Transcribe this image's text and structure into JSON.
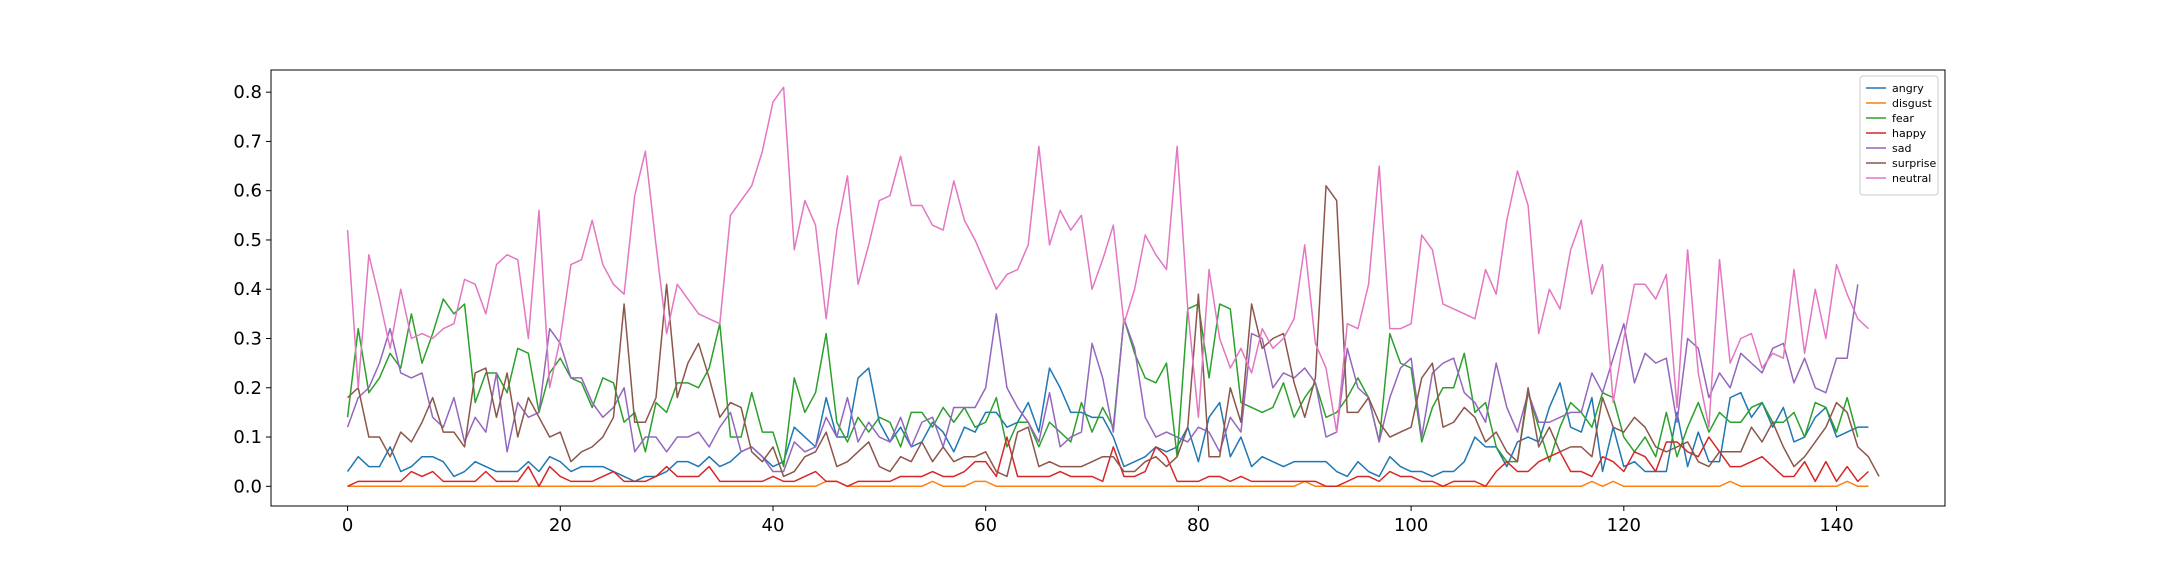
{
  "chart_data": {
    "type": "line",
    "title": "",
    "xlabel": "",
    "ylabel": "",
    "xlim": [
      -7.2,
      150.2
    ],
    "ylim": [
      -0.04,
      0.845
    ],
    "xticks": [
      0,
      20,
      40,
      60,
      80,
      100,
      120,
      140
    ],
    "yticks": [
      0.0,
      0.1,
      0.2,
      0.3,
      0.4,
      0.5,
      0.6,
      0.7,
      0.8
    ],
    "grid": false,
    "legend_position": "top-right",
    "series": [
      {
        "name": "angry",
        "color": "#1f77b4",
        "values": [
          0.03,
          0.06,
          0.04,
          0.04,
          0.08,
          0.03,
          0.04,
          0.06,
          0.06,
          0.05,
          0.02,
          0.03,
          0.05,
          0.04,
          0.03,
          0.03,
          0.03,
          0.05,
          0.03,
          0.06,
          0.05,
          0.03,
          0.04,
          0.04,
          0.04,
          0.03,
          0.02,
          0.01,
          0.02,
          0.02,
          0.03,
          0.05,
          0.05,
          0.04,
          0.06,
          0.04,
          0.05,
          0.07,
          0.08,
          0.06,
          0.04,
          0.05,
          0.12,
          0.1,
          0.08,
          0.18,
          0.1,
          0.1,
          0.22,
          0.24,
          0.13,
          0.09,
          0.12,
          0.08,
          0.09,
          0.13,
          0.11,
          0.07,
          0.12,
          0.11,
          0.15,
          0.15,
          0.12,
          0.13,
          0.17,
          0.11,
          0.24,
          0.2,
          0.15,
          0.15,
          0.14,
          0.14,
          0.1,
          0.04,
          0.05,
          0.06,
          0.08,
          0.07,
          0.08,
          0.12,
          0.05,
          0.14,
          0.17,
          0.06,
          0.1,
          0.04,
          0.06,
          0.05,
          0.04,
          0.05,
          0.05,
          0.05,
          0.05,
          0.03,
          0.02,
          0.05,
          0.03,
          0.02,
          0.06,
          0.04,
          0.03,
          0.03,
          0.02,
          0.03,
          0.03,
          0.05,
          0.1,
          0.08,
          0.08,
          0.04,
          0.09,
          0.1,
          0.09,
          0.16,
          0.21,
          0.12,
          0.11,
          0.18,
          0.03,
          0.12,
          0.04,
          0.05,
          0.03,
          0.03,
          0.03,
          0.15,
          0.04,
          0.11,
          0.05,
          0.05,
          0.18,
          0.19,
          0.14,
          0.17,
          0.12,
          0.16,
          0.09,
          0.1,
          0.14,
          0.16,
          0.1,
          0.11,
          0.12,
          0.12
        ]
      },
      {
        "name": "disgust",
        "color": "#ff7f0e",
        "values": [
          0.0,
          0.0,
          0.0,
          0.0,
          0.0,
          0.0,
          0.0,
          0.0,
          0.0,
          0.0,
          0.0,
          0.0,
          0.0,
          0.0,
          0.0,
          0.0,
          0.0,
          0.0,
          0.0,
          0.0,
          0.0,
          0.0,
          0.0,
          0.0,
          0.0,
          0.0,
          0.0,
          0.0,
          0.0,
          0.0,
          0.0,
          0.0,
          0.0,
          0.0,
          0.0,
          0.0,
          0.0,
          0.0,
          0.0,
          0.0,
          0.0,
          0.0,
          0.0,
          0.0,
          0.0,
          0.01,
          0.01,
          0.0,
          0.0,
          0.0,
          0.0,
          0.0,
          0.0,
          0.0,
          0.0,
          0.01,
          0.0,
          0.0,
          0.0,
          0.01,
          0.01,
          0.0,
          0.0,
          0.0,
          0.0,
          0.0,
          0.0,
          0.0,
          0.0,
          0.0,
          0.0,
          0.0,
          0.0,
          0.0,
          0.0,
          0.0,
          0.0,
          0.0,
          0.0,
          0.0,
          0.0,
          0.0,
          0.0,
          0.0,
          0.0,
          0.0,
          0.0,
          0.0,
          0.0,
          0.0,
          0.01,
          0.0,
          0.0,
          0.0,
          0.0,
          0.0,
          0.0,
          0.0,
          0.0,
          0.0,
          0.0,
          0.0,
          0.0,
          0.0,
          0.0,
          0.0,
          0.0,
          0.0,
          0.0,
          0.0,
          0.0,
          0.0,
          0.0,
          0.0,
          0.0,
          0.0,
          0.0,
          0.01,
          0.0,
          0.01,
          0.0,
          0.0,
          0.0,
          0.0,
          0.0,
          0.0,
          0.0,
          0.0,
          0.0,
          0.0,
          0.01,
          0.0,
          0.0,
          0.0,
          0.0,
          0.0,
          0.0,
          0.0,
          0.0,
          0.0,
          0.0,
          0.01,
          0.0,
          0.0
        ]
      },
      {
        "name": "fear",
        "color": "#2ca02c",
        "values": [
          0.14,
          0.32,
          0.19,
          0.22,
          0.27,
          0.24,
          0.35,
          0.25,
          0.31,
          0.38,
          0.35,
          0.37,
          0.17,
          0.23,
          0.23,
          0.19,
          0.28,
          0.27,
          0.15,
          0.23,
          0.26,
          0.22,
          0.21,
          0.16,
          0.22,
          0.21,
          0.13,
          0.15,
          0.07,
          0.17,
          0.15,
          0.21,
          0.21,
          0.2,
          0.24,
          0.33,
          0.1,
          0.1,
          0.19,
          0.11,
          0.11,
          0.04,
          0.22,
          0.15,
          0.19,
          0.31,
          0.13,
          0.09,
          0.14,
          0.11,
          0.14,
          0.13,
          0.08,
          0.15,
          0.15,
          0.12,
          0.16,
          0.13,
          0.16,
          0.12,
          0.13,
          0.18,
          0.08,
          0.13,
          0.13,
          0.08,
          0.13,
          0.11,
          0.09,
          0.17,
          0.11,
          0.16,
          0.12,
          0.34,
          0.27,
          0.22,
          0.21,
          0.25,
          0.06,
          0.36,
          0.37,
          0.22,
          0.37,
          0.36,
          0.17,
          0.16,
          0.15,
          0.16,
          0.21,
          0.14,
          0.18,
          0.21,
          0.14,
          0.15,
          0.18,
          0.22,
          0.18,
          0.09,
          0.31,
          0.25,
          0.24,
          0.09,
          0.16,
          0.2,
          0.2,
          0.27,
          0.15,
          0.17,
          0.08,
          0.05,
          0.05,
          0.19,
          0.12,
          0.05,
          0.12,
          0.17,
          0.15,
          0.12,
          0.19,
          0.18,
          0.1,
          0.07,
          0.1,
          0.06,
          0.15,
          0.06,
          0.12,
          0.17,
          0.11,
          0.15,
          0.13,
          0.13,
          0.16,
          0.17,
          0.13,
          0.13,
          0.15,
          0.1,
          0.17,
          0.16,
          0.11,
          0.18,
          0.1
        ]
      },
      {
        "name": "happy",
        "color": "#d62728",
        "values": [
          0.0,
          0.01,
          0.01,
          0.01,
          0.01,
          0.01,
          0.03,
          0.02,
          0.03,
          0.01,
          0.01,
          0.01,
          0.01,
          0.03,
          0.01,
          0.01,
          0.01,
          0.04,
          0.0,
          0.04,
          0.02,
          0.01,
          0.01,
          0.01,
          0.02,
          0.03,
          0.01,
          0.01,
          0.01,
          0.02,
          0.04,
          0.02,
          0.02,
          0.02,
          0.04,
          0.01,
          0.01,
          0.01,
          0.01,
          0.01,
          0.02,
          0.01,
          0.01,
          0.02,
          0.03,
          0.01,
          0.01,
          0.0,
          0.01,
          0.01,
          0.01,
          0.01,
          0.02,
          0.02,
          0.02,
          0.03,
          0.02,
          0.02,
          0.03,
          0.05,
          0.05,
          0.02,
          0.1,
          0.02,
          0.02,
          0.02,
          0.02,
          0.03,
          0.02,
          0.02,
          0.02,
          0.01,
          0.08,
          0.02,
          0.02,
          0.03,
          0.08,
          0.06,
          0.01,
          0.01,
          0.01,
          0.02,
          0.02,
          0.01,
          0.02,
          0.01,
          0.01,
          0.01,
          0.01,
          0.01,
          0.01,
          0.01,
          0.0,
          0.0,
          0.01,
          0.02,
          0.02,
          0.01,
          0.03,
          0.02,
          0.02,
          0.01,
          0.01,
          0.0,
          0.01,
          0.01,
          0.01,
          0.0,
          0.03,
          0.05,
          0.03,
          0.03,
          0.05,
          0.06,
          0.07,
          0.03,
          0.03,
          0.02,
          0.06,
          0.05,
          0.03,
          0.07,
          0.06,
          0.03,
          0.09,
          0.09,
          0.07,
          0.06,
          0.1,
          0.07,
          0.04,
          0.04,
          0.05,
          0.06,
          0.04,
          0.02,
          0.02,
          0.05,
          0.01,
          0.05,
          0.01,
          0.04,
          0.01,
          0.03
        ]
      },
      {
        "name": "sad",
        "color": "#9467bd",
        "values": [
          0.12,
          0.18,
          0.2,
          0.25,
          0.32,
          0.23,
          0.22,
          0.23,
          0.14,
          0.12,
          0.18,
          0.09,
          0.14,
          0.11,
          0.23,
          0.07,
          0.17,
          0.14,
          0.15,
          0.32,
          0.29,
          0.22,
          0.22,
          0.17,
          0.14,
          0.16,
          0.2,
          0.07,
          0.1,
          0.1,
          0.07,
          0.1,
          0.1,
          0.11,
          0.08,
          0.12,
          0.15,
          0.07,
          0.08,
          0.06,
          0.03,
          0.03,
          0.09,
          0.07,
          0.08,
          0.14,
          0.1,
          0.18,
          0.09,
          0.13,
          0.1,
          0.09,
          0.14,
          0.08,
          0.13,
          0.14,
          0.08,
          0.16,
          0.16,
          0.16,
          0.2,
          0.35,
          0.2,
          0.16,
          0.13,
          0.09,
          0.19,
          0.08,
          0.1,
          0.11,
          0.29,
          0.22,
          0.11,
          0.34,
          0.28,
          0.14,
          0.1,
          0.11,
          0.1,
          0.09,
          0.12,
          0.11,
          0.07,
          0.14,
          0.11,
          0.31,
          0.3,
          0.2,
          0.23,
          0.22,
          0.24,
          0.21,
          0.1,
          0.11,
          0.28,
          0.2,
          0.18,
          0.09,
          0.18,
          0.24,
          0.26,
          0.1,
          0.23,
          0.25,
          0.26,
          0.19,
          0.17,
          0.13,
          0.25,
          0.16,
          0.11,
          0.19,
          0.13,
          0.13,
          0.14,
          0.15,
          0.15,
          0.23,
          0.19,
          0.26,
          0.33,
          0.21,
          0.27,
          0.25,
          0.26,
          0.13,
          0.3,
          0.28,
          0.18,
          0.23,
          0.2,
          0.27,
          0.25,
          0.23,
          0.28,
          0.29,
          0.21,
          0.26,
          0.2,
          0.19,
          0.26,
          0.26,
          0.41
        ]
      },
      {
        "name": "surprise",
        "color": "#8c564b",
        "values": [
          0.18,
          0.2,
          0.1,
          0.1,
          0.06,
          0.11,
          0.09,
          0.13,
          0.18,
          0.11,
          0.11,
          0.08,
          0.23,
          0.24,
          0.14,
          0.23,
          0.1,
          0.18,
          0.14,
          0.1,
          0.11,
          0.05,
          0.07,
          0.08,
          0.1,
          0.14,
          0.37,
          0.13,
          0.13,
          0.18,
          0.41,
          0.18,
          0.25,
          0.29,
          0.22,
          0.14,
          0.17,
          0.16,
          0.07,
          0.05,
          0.08,
          0.02,
          0.03,
          0.06,
          0.07,
          0.11,
          0.04,
          0.05,
          0.07,
          0.09,
          0.04,
          0.03,
          0.06,
          0.05,
          0.09,
          0.05,
          0.08,
          0.05,
          0.06,
          0.06,
          0.07,
          0.03,
          0.02,
          0.11,
          0.12,
          0.04,
          0.05,
          0.04,
          0.04,
          0.04,
          0.05,
          0.06,
          0.06,
          0.03,
          0.03,
          0.05,
          0.06,
          0.04,
          0.06,
          0.12,
          0.39,
          0.06,
          0.06,
          0.2,
          0.13,
          0.37,
          0.28,
          0.3,
          0.31,
          0.21,
          0.14,
          0.22,
          0.61,
          0.58,
          0.15,
          0.15,
          0.18,
          0.13,
          0.1,
          0.11,
          0.12,
          0.22,
          0.25,
          0.12,
          0.13,
          0.16,
          0.14,
          0.09,
          0.11,
          0.07,
          0.05,
          0.2,
          0.08,
          0.12,
          0.07,
          0.08,
          0.08,
          0.06,
          0.18,
          0.12,
          0.11,
          0.14,
          0.12,
          0.08,
          0.07,
          0.08,
          0.09,
          0.05,
          0.04,
          0.07,
          0.07,
          0.07,
          0.12,
          0.09,
          0.13,
          0.08,
          0.04,
          0.06,
          0.09,
          0.12,
          0.17,
          0.15,
          0.08,
          0.06,
          0.02
        ]
      },
      {
        "name": "neutral",
        "color": "#e377c2",
        "values": [
          0.52,
          0.2,
          0.47,
          0.38,
          0.28,
          0.4,
          0.3,
          0.31,
          0.3,
          0.32,
          0.33,
          0.42,
          0.41,
          0.35,
          0.45,
          0.47,
          0.46,
          0.3,
          0.56,
          0.2,
          0.3,
          0.45,
          0.46,
          0.54,
          0.45,
          0.41,
          0.39,
          0.59,
          0.68,
          0.49,
          0.31,
          0.41,
          0.38,
          0.35,
          0.34,
          0.33,
          0.55,
          0.58,
          0.61,
          0.68,
          0.78,
          0.81,
          0.48,
          0.58,
          0.53,
          0.34,
          0.52,
          0.63,
          0.41,
          0.49,
          0.58,
          0.59,
          0.67,
          0.57,
          0.57,
          0.53,
          0.52,
          0.62,
          0.54,
          0.5,
          0.45,
          0.4,
          0.43,
          0.44,
          0.49,
          0.69,
          0.49,
          0.56,
          0.52,
          0.55,
          0.4,
          0.46,
          0.53,
          0.33,
          0.4,
          0.51,
          0.47,
          0.44,
          0.69,
          0.36,
          0.14,
          0.44,
          0.3,
          0.24,
          0.28,
          0.23,
          0.32,
          0.28,
          0.3,
          0.34,
          0.49,
          0.29,
          0.24,
          0.11,
          0.33,
          0.32,
          0.41,
          0.65,
          0.32,
          0.32,
          0.33,
          0.51,
          0.48,
          0.37,
          0.36,
          0.35,
          0.34,
          0.44,
          0.39,
          0.54,
          0.64,
          0.57,
          0.31,
          0.4,
          0.36,
          0.48,
          0.54,
          0.39,
          0.45,
          0.17,
          0.3,
          0.41,
          0.41,
          0.38,
          0.43,
          0.16,
          0.48,
          0.23,
          0.12,
          0.46,
          0.25,
          0.3,
          0.31,
          0.24,
          0.27,
          0.26,
          0.44,
          0.27,
          0.4,
          0.3,
          0.45,
          0.39,
          0.34,
          0.32
        ]
      }
    ]
  }
}
